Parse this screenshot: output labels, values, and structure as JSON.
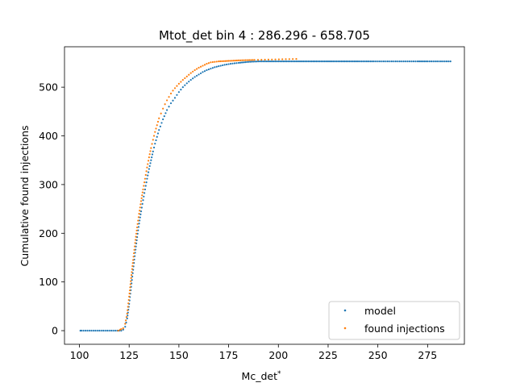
{
  "chart_data": {
    "type": "scatter",
    "title": "Mtot_det bin 4 : 286.296 - 658.705",
    "xlabel": "Mc_det",
    "xlabel_superscript": "*",
    "ylabel": "Cumulative found injections",
    "xlim": [
      92.5,
      293.5
    ],
    "ylim": [
      -28,
      583
    ],
    "xticks": [
      100,
      125,
      150,
      175,
      200,
      225,
      250,
      275
    ],
    "yticks": [
      0,
      100,
      200,
      300,
      400,
      500
    ],
    "grid": false,
    "legend_position": "lower right",
    "series": [
      {
        "name": "model",
        "color": "#1f77b4",
        "marker": "point",
        "points": [
          [
            100.5,
            0
          ],
          [
            101,
            0
          ],
          [
            102,
            0
          ],
          [
            103,
            0
          ],
          [
            104,
            0
          ],
          [
            105,
            0
          ],
          [
            106,
            0
          ],
          [
            107,
            0
          ],
          [
            108,
            0
          ],
          [
            109,
            0
          ],
          [
            110,
            0
          ],
          [
            111,
            0
          ],
          [
            112,
            0
          ],
          [
            113,
            0
          ],
          [
            114,
            0
          ],
          [
            115,
            0
          ],
          [
            116,
            0
          ],
          [
            117,
            0
          ],
          [
            118,
            0
          ],
          [
            119,
            0
          ],
          [
            120,
            0
          ],
          [
            121,
            0
          ],
          [
            122,
            2
          ],
          [
            123,
            8
          ],
          [
            124,
            25
          ],
          [
            125,
            55
          ],
          [
            126,
            90
          ],
          [
            127,
            125
          ],
          [
            128,
            160
          ],
          [
            129,
            192
          ],
          [
            130,
            220
          ],
          [
            131,
            245
          ],
          [
            132,
            268
          ],
          [
            133,
            290
          ],
          [
            134,
            312
          ],
          [
            135,
            332
          ],
          [
            136,
            350
          ],
          [
            137,
            368
          ],
          [
            138,
            384
          ],
          [
            139,
            398
          ],
          [
            140,
            412
          ],
          [
            142,
            434
          ],
          [
            144,
            453
          ],
          [
            146,
            467
          ],
          [
            148,
            478
          ],
          [
            150,
            490
          ],
          [
            152,
            500
          ],
          [
            154,
            508
          ],
          [
            156,
            515
          ],
          [
            158,
            521
          ],
          [
            160,
            526
          ],
          [
            162,
            531
          ],
          [
            164,
            535
          ],
          [
            166,
            538
          ],
          [
            168,
            541
          ],
          [
            170,
            543
          ],
          [
            173,
            546
          ],
          [
            176,
            548
          ],
          [
            180,
            550
          ],
          [
            185,
            552
          ],
          [
            190,
            553
          ],
          [
            195,
            553
          ],
          [
            200,
            553
          ],
          [
            210,
            553
          ],
          [
            220,
            553
          ],
          [
            230,
            553
          ],
          [
            240,
            553
          ],
          [
            248,
            553
          ],
          [
            252,
            553
          ],
          [
            255,
            553
          ],
          [
            258,
            553
          ],
          [
            261,
            553
          ],
          [
            263,
            553
          ],
          [
            266,
            553
          ],
          [
            270,
            553
          ],
          [
            275,
            553
          ],
          [
            286.5,
            553
          ]
        ]
      },
      {
        "name": "found injections",
        "color": "#ff7f0e",
        "marker": "point",
        "points": [
          [
            119.5,
            0
          ],
          [
            120.5,
            2
          ],
          [
            121,
            3
          ],
          [
            122,
            5
          ],
          [
            123,
            14
          ],
          [
            124,
            35
          ],
          [
            125,
            70
          ],
          [
            126,
            108
          ],
          [
            127,
            145
          ],
          [
            128,
            180
          ],
          [
            129,
            212
          ],
          [
            130,
            240
          ],
          [
            131,
            266
          ],
          [
            132,
            290
          ],
          [
            133,
            312
          ],
          [
            134,
            335
          ],
          [
            135,
            356
          ],
          [
            136,
            375
          ],
          [
            137,
            392
          ],
          [
            138,
            408
          ],
          [
            139,
            422
          ],
          [
            140,
            436
          ],
          [
            141,
            446
          ],
          [
            142,
            456
          ],
          [
            143,
            465
          ],
          [
            144,
            473
          ],
          [
            145,
            480
          ],
          [
            146,
            487
          ],
          [
            147,
            493
          ],
          [
            148,
            498
          ],
          [
            150,
            507
          ],
          [
            152,
            515
          ],
          [
            154,
            522
          ],
          [
            156,
            529
          ],
          [
            158,
            535
          ],
          [
            160,
            540
          ],
          [
            162,
            544
          ],
          [
            164,
            548
          ],
          [
            166,
            551
          ],
          [
            170,
            553
          ],
          [
            175,
            554
          ],
          [
            180,
            555
          ],
          [
            188,
            556
          ],
          [
            209,
            558
          ]
        ]
      }
    ]
  }
}
